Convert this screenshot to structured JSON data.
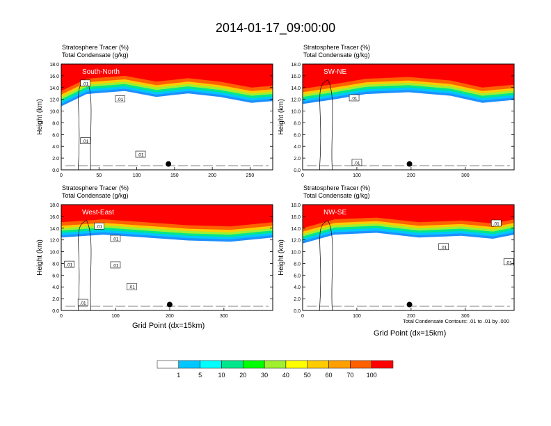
{
  "title": "2014-01-17_09:00:00",
  "panel_title_line1": "Stratosphere Tracer   (%)",
  "panel_title_line2": "Total Condensate   (g/kg)",
  "ylabel": "Height (km)",
  "xlabel": "Grid Point (dx=15km)",
  "footnote": "Total Condensate Contours: .01 to .01 by .000",
  "chart_data": [
    {
      "type": "heatmap",
      "name": "South-North",
      "label": "South-North",
      "yticks": [
        "0.0",
        "2.0",
        "4.0",
        "6.0",
        "8.0",
        "10.0",
        "12.0",
        "14.0",
        "16.0",
        "18.0"
      ],
      "xticks": [
        {
          "v": 0,
          "t": "0"
        },
        {
          "v": 50,
          "t": "50"
        },
        {
          "v": 100,
          "t": "100"
        },
        {
          "v": 150,
          "t": "150"
        },
        {
          "v": 200,
          "t": "200"
        },
        {
          "v": 250,
          "t": "250"
        }
      ],
      "xlim": [
        0,
        280
      ],
      "ylim": [
        0,
        18
      ],
      "marker": {
        "x": 142,
        "y": 1.0
      },
      "contour_labels": [
        {
          "x": 32,
          "y": 14.7,
          "t": ".01"
        },
        {
          "x": 78,
          "y": 12.0,
          "t": ".01"
        },
        {
          "x": 32,
          "y": 4.9,
          "t": ".01"
        },
        {
          "x": 105,
          "y": 2.6,
          "t": ".01"
        }
      ]
    },
    {
      "type": "heatmap",
      "name": "SW-NE",
      "label": "SW-NE",
      "yticks": [
        "0.0",
        "2.0",
        "4.0",
        "6.0",
        "8.0",
        "10.0",
        "12.0",
        "14.0",
        "16.0",
        "18.0"
      ],
      "xticks": [
        {
          "v": 0,
          "t": "0"
        },
        {
          "v": 100,
          "t": "100"
        },
        {
          "v": 200,
          "t": "200"
        },
        {
          "v": 300,
          "t": "300"
        }
      ],
      "xlim": [
        0,
        390
      ],
      "ylim": [
        0,
        18
      ],
      "marker": {
        "x": 197,
        "y": 1.0
      },
      "contour_labels": [
        {
          "x": 95,
          "y": 12.2,
          "t": ".01"
        },
        {
          "x": 100,
          "y": 1.2,
          "t": ".01"
        }
      ]
    },
    {
      "type": "heatmap",
      "name": "West-East",
      "label": "West-East",
      "yticks": [
        "0.0",
        "2.0",
        "4.0",
        "6.0",
        "8.0",
        "10.0",
        "12.0",
        "14.0",
        "16.0",
        "18.0"
      ],
      "xticks": [
        {
          "v": 0,
          "t": "0"
        },
        {
          "v": 100,
          "t": "100"
        },
        {
          "v": 200,
          "t": "200"
        },
        {
          "v": 300,
          "t": "300"
        }
      ],
      "xlim": [
        0,
        390
      ],
      "ylim": [
        0,
        18
      ],
      "marker": {
        "x": 200,
        "y": 1.0
      },
      "contour_labels": [
        {
          "x": 70,
          "y": 14.3,
          "t": ".01"
        },
        {
          "x": 100,
          "y": 12.2,
          "t": ".01"
        },
        {
          "x": 15,
          "y": 7.8,
          "t": ".01"
        },
        {
          "x": 100,
          "y": 7.7,
          "t": ".01"
        },
        {
          "x": 130,
          "y": 4.0,
          "t": ".01"
        },
        {
          "x": 40,
          "y": 1.3,
          "t": ".01"
        }
      ]
    },
    {
      "type": "heatmap",
      "name": "NW-SE",
      "label": "NW-SE",
      "yticks": [
        "0.0",
        "2.0",
        "4.0",
        "6.0",
        "8.0",
        "10.0",
        "12.0",
        "14.0",
        "16.0",
        "18.0"
      ],
      "xticks": [
        {
          "v": 0,
          "t": "0"
        },
        {
          "v": 100,
          "t": "100"
        },
        {
          "v": 200,
          "t": "200"
        },
        {
          "v": 300,
          "t": "300"
        }
      ],
      "xlim": [
        0,
        390
      ],
      "ylim": [
        0,
        18
      ],
      "marker": {
        "x": 197,
        "y": 1.0
      },
      "contour_labels": [
        {
          "x": 357,
          "y": 14.8,
          "t": ".01"
        },
        {
          "x": 260,
          "y": 10.8,
          "t": ".01"
        },
        {
          "x": 380,
          "y": 8.2,
          "t": ".01"
        }
      ]
    }
  ],
  "colorbar": {
    "labels": [
      "1",
      "5",
      "10",
      "20",
      "30",
      "40",
      "50",
      "60",
      "70",
      "100"
    ],
    "colors": [
      "#FFFFFF",
      "#1E90FF",
      "#00C8FF",
      "#00FFFF",
      "#00E68C",
      "#00FF00",
      "#A0F030",
      "#FFFF00",
      "#FFCC00",
      "#FFA000",
      "#FF6000",
      "#FF0000"
    ]
  }
}
